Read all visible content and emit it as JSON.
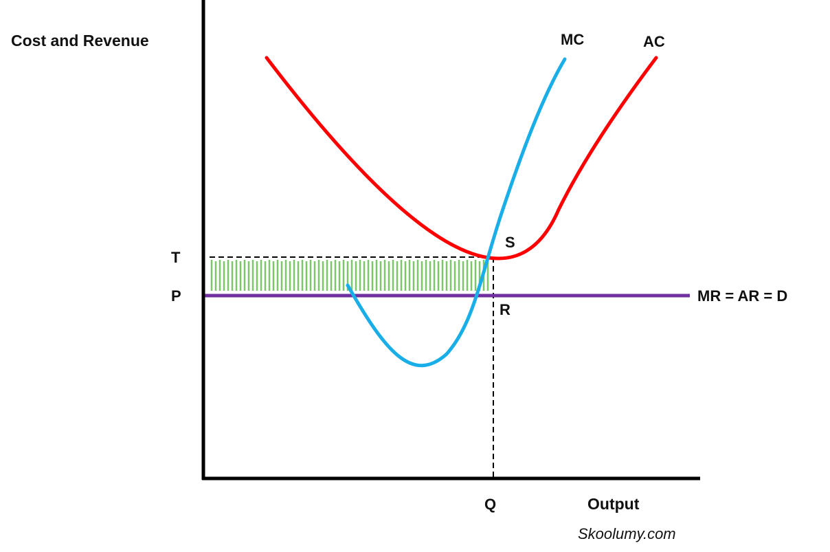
{
  "labels": {
    "y_axis": "Cost and Revenue",
    "x_axis": "Output",
    "mc": "MC",
    "ac": "AC",
    "demand": "MR = AR = D",
    "point_t": "T",
    "point_p": "P",
    "point_s": "S",
    "point_r": "R",
    "point_q": "Q"
  },
  "watermark": "Skoolumy.com",
  "colors": {
    "axis": "#000000",
    "ac_curve": "#ff0000",
    "mc_curve": "#1aaee8",
    "demand_line": "#7030a0",
    "loss_area": "#7cc66a",
    "guide": "#000000"
  }
}
